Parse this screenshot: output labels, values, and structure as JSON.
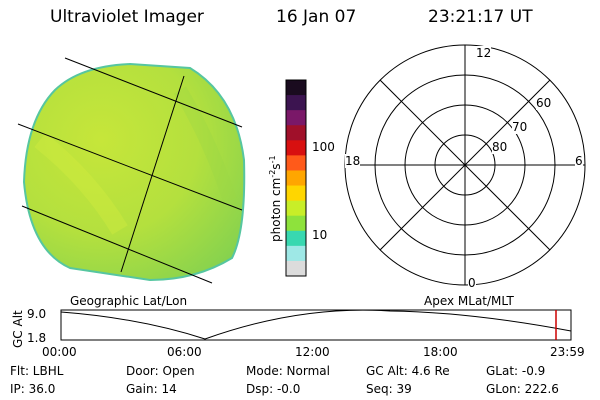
{
  "header": {
    "title": "Ultraviolet Imager",
    "date": "16 Jan 07",
    "time": "23:21:17 UT"
  },
  "image_panel": {
    "label": "Geographic Lat/Lon",
    "disk_fill": "#b8e23c"
  },
  "colorbar": {
    "unit_label": "photon cm",
    "unit_exp1": "-2",
    "unit_s": "s",
    "unit_exp2": "-1",
    "ticks": [
      "100",
      "10"
    ],
    "colors": [
      "#1a0b1f",
      "#3c1450",
      "#7a1868",
      "#a0102a",
      "#d81010",
      "#ff5a1a",
      "#ffa600",
      "#ffd600",
      "#c8ee28",
      "#8ee23c",
      "#38d8b0",
      "#9ee8e6",
      "#dcdcdc"
    ]
  },
  "polar_plot": {
    "label": "Apex MLat/MLT",
    "mlt_labels": {
      "top": "12",
      "left": "18",
      "right": "6",
      "bottom": "0"
    },
    "lat_labels": [
      "60",
      "70",
      "80"
    ]
  },
  "altitude_strip": {
    "y_label": "GC Alt",
    "y_ticks": [
      "9.0",
      "1.8"
    ],
    "x_ticks": [
      "00:00",
      "06:00",
      "12:00",
      "18:00",
      "23:59"
    ],
    "marker_color": "#cc0000"
  },
  "status": {
    "flt": "Flt: LBHL",
    "door": "Door: Open",
    "mode": "Mode: Normal",
    "gc_alt": "GC Alt: 4.6 Re",
    "glat": "GLat:  -0.9",
    "ip": "IP: 36.0",
    "gain": "Gain: 14",
    "dsp": "Dsp:   -0.0",
    "seq": "Seq: 39",
    "glon": "GLon: 222.6"
  }
}
